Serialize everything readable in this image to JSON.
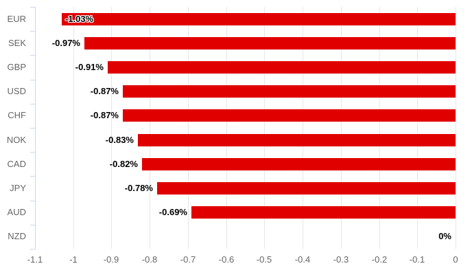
{
  "chart_data": {
    "type": "bar",
    "orientation": "horizontal",
    "title": "",
    "categories": [
      "EUR",
      "SEK",
      "GBP",
      "USD",
      "CHF",
      "NOK",
      "CAD",
      "JPY",
      "AUD",
      "NZD"
    ],
    "values": [
      -1.03,
      -0.97,
      -0.91,
      -0.87,
      -0.87,
      -0.83,
      -0.82,
      -0.78,
      -0.69,
      0
    ],
    "data_labels": [
      "-1.03%",
      "-0.97%",
      "-0.91%",
      "-0.87%",
      "-0.87%",
      "-0.83%",
      "-0.82%",
      "-0.78%",
      "-0.69%",
      "0%"
    ],
    "x_tick_values": [
      -1.1,
      -1,
      -0.9,
      -0.8,
      -0.7,
      -0.6,
      -0.5,
      -0.4,
      -0.3,
      -0.2,
      -0.1,
      0
    ],
    "x_tick_labels": [
      "-1.1",
      "-1",
      "-0.9",
      "-0.8",
      "-0.7",
      "-0.6",
      "-0.5",
      "-0.4",
      "-0.3",
      "-0.2",
      "-0.1",
      "0"
    ],
    "xlim": [
      -1.1,
      0
    ],
    "grid": true,
    "legend_position": "none",
    "colors": {
      "bar": "#e00000",
      "axis_line": "#ccd6eb",
      "gridline": "#e6e6e6",
      "axis_label": "#666666",
      "data_label": "#000000",
      "background": "#ffffff"
    }
  }
}
